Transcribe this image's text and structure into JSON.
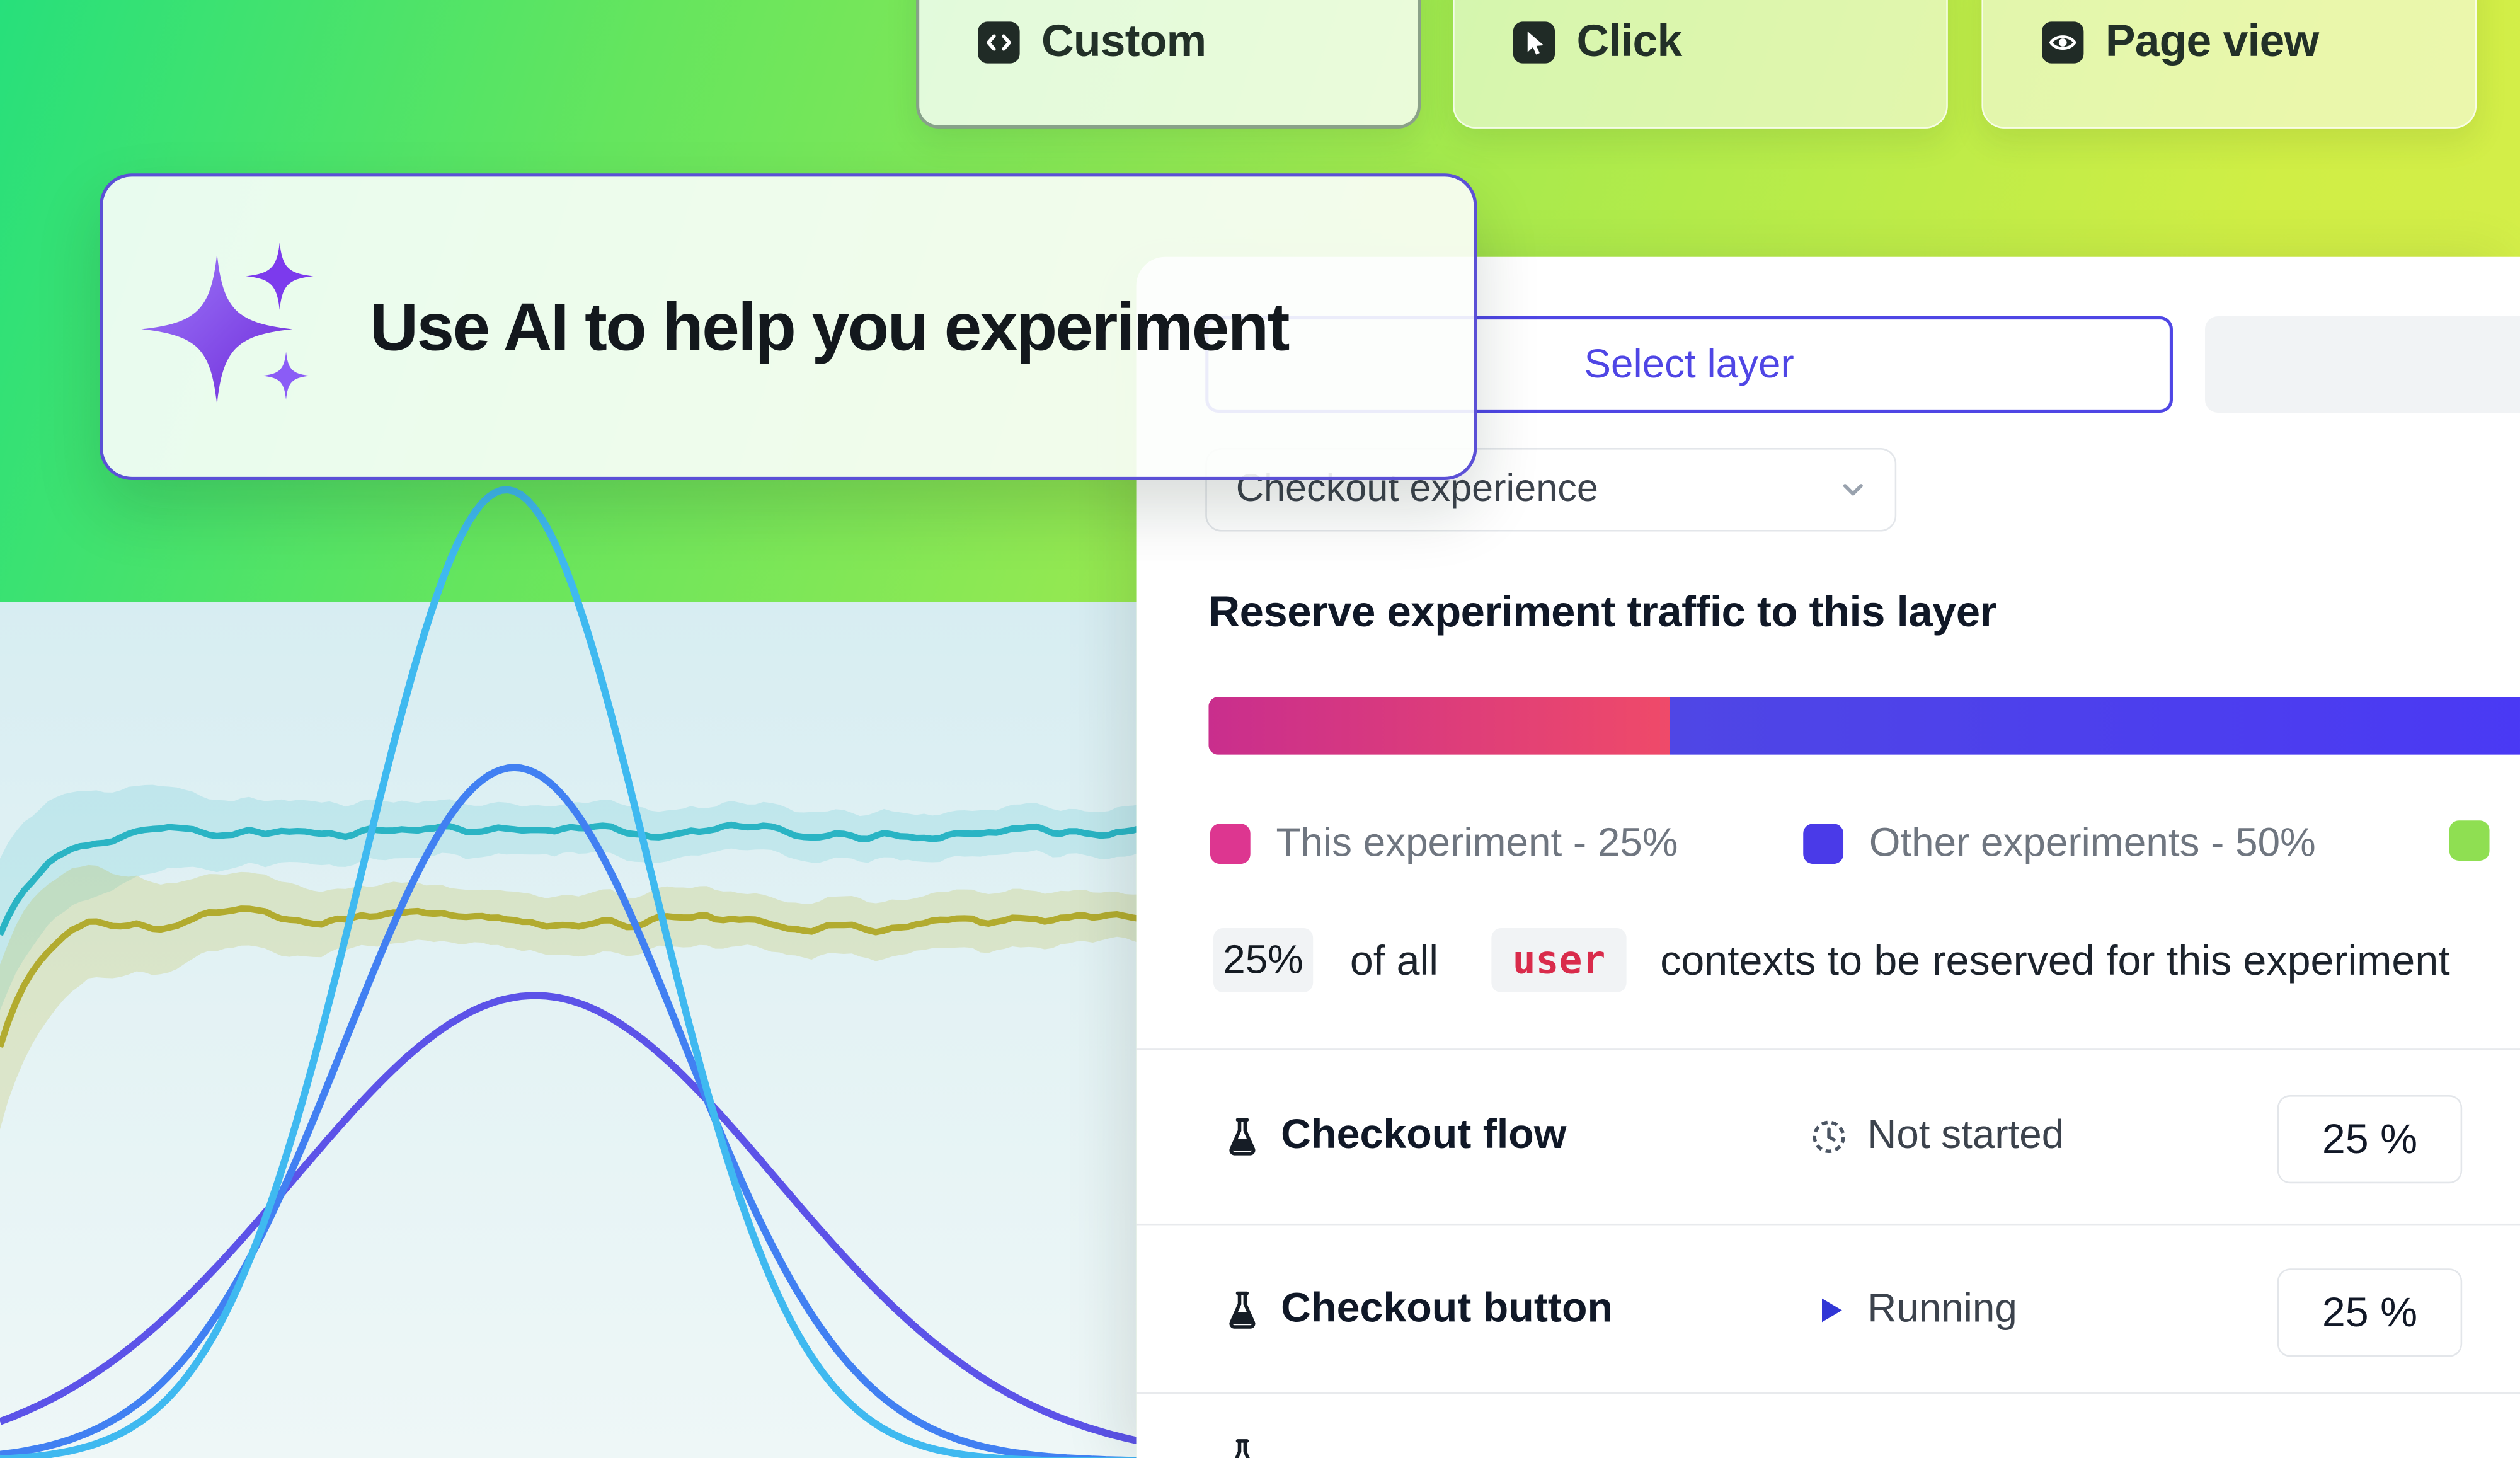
{
  "event_buttons": [
    {
      "label": "Custom",
      "icon": "code-icon",
      "selected": true
    },
    {
      "label": "Click",
      "icon": "cursor-icon",
      "selected": false
    },
    {
      "label": "Page view",
      "icon": "eye-icon",
      "selected": false
    }
  ],
  "ai_banner": {
    "title": "Use AI to help you experiment",
    "icon": "sparkles-icon"
  },
  "layer_section": {
    "select_layer_label": "Select layer",
    "layer_value": "Checkout experience",
    "traffic_heading": "Reserve experiment traffic to this layer",
    "bar_segments": [
      {
        "name": "this-experiment",
        "pct": 25,
        "color_start": "#c92e8d",
        "color_end": "#ef4a69"
      },
      {
        "name": "other-experiments",
        "pct": 50,
        "color_start": "#4f46e5",
        "color_end": "#4a38f5"
      },
      {
        "name": "available",
        "color": "#8fdf52"
      }
    ],
    "legend": [
      {
        "label": "This experiment - 25%",
        "color": "#dd3690"
      },
      {
        "label": "Other experiments - 50%",
        "color": "#4a3ae8"
      },
      {
        "label": "",
        "color": "#8fdf52"
      }
    ],
    "allocation_sentence": {
      "pct": "25%",
      "text_1": "of all",
      "entity": "user",
      "text_2": "contexts to be reserved for this experiment"
    }
  },
  "experiments": [
    {
      "name": "Checkout flow",
      "status": "Not started",
      "status_icon": "clock-icon",
      "allocation": "25 %"
    },
    {
      "name": "Checkout button",
      "status": "Running",
      "status_icon": "play-icon",
      "allocation": "25 %"
    }
  ],
  "colors": {
    "accent_indigo": "#4f46e5",
    "entity_red": "#d92b4b",
    "status_running_blue": "#3136d6",
    "status_notstarted_gray": "#4b5563"
  }
}
